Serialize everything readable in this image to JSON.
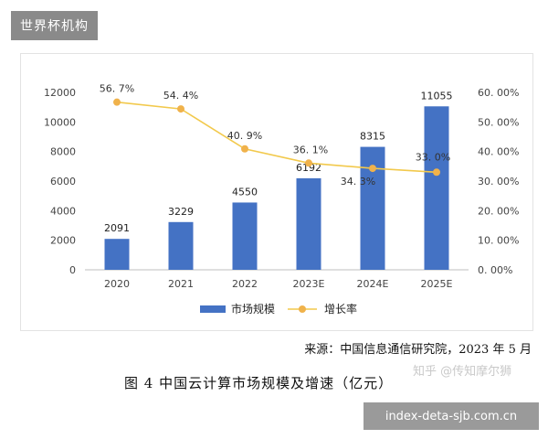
{
  "header": {
    "tag": "世界杯机构"
  },
  "colors": {
    "bar": "#4472c4",
    "line": "#f2c94c",
    "marker": "#f0b24b",
    "text": "#444444"
  },
  "chart_data": {
    "type": "bar",
    "categories": [
      "2020",
      "2021",
      "2022",
      "2023E",
      "2024E",
      "2025E"
    ],
    "series": [
      {
        "name": "市场规模",
        "type": "bar",
        "axis": "left",
        "values": [
          2091,
          3229,
          4550,
          6192,
          8315,
          11055
        ]
      },
      {
        "name": "增长率",
        "type": "line",
        "axis": "right",
        "values": [
          56.7,
          54.4,
          40.9,
          36.1,
          34.3,
          33.0
        ]
      }
    ],
    "bar_labels": [
      "2091",
      "3229",
      "4550",
      "6192",
      "8315",
      "11055"
    ],
    "line_labels": [
      "56. 7%",
      "54. 4%",
      "40. 9%",
      "36. 1%",
      "34. 3%",
      "33. 0%"
    ],
    "y_left": {
      "range": [
        0,
        12000
      ],
      "ticks": [
        "0",
        "2000",
        "4000",
        "6000",
        "8000",
        "10000",
        "12000"
      ]
    },
    "y_right": {
      "range": [
        0,
        60
      ],
      "ticks": [
        "0. 00%",
        "10. 00%",
        "20. 00%",
        "30. 00%",
        "40. 00%",
        "50. 00%",
        "60. 00%"
      ]
    },
    "grid": false,
    "legend_position": "bottom"
  },
  "source": "来源：中国信息通信研究院，2023 年 5 月",
  "caption": "图 4  中国云计算市场规模及增速（亿元）",
  "watermark": "知乎 @传知摩尔狮",
  "site": "index-deta-sjb.com.cn"
}
